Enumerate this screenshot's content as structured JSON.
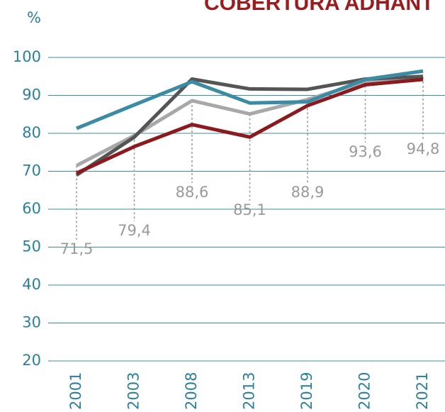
{
  "chart_data": {
    "type": "line",
    "title": "COBERTURA ADHANT",
    "y_label": "%",
    "categories": [
      "2001",
      "2003",
      "2008",
      "2013",
      "2019",
      "2020",
      "2021"
    ],
    "ylim": [
      20,
      100
    ],
    "yticks": [
      20,
      30,
      40,
      50,
      60,
      70,
      80,
      90,
      100
    ],
    "grid": true,
    "series": [
      {
        "color": "#3a8ba3",
        "values": [
          81.3,
          87.5,
          93.6,
          88,
          88.3,
          94.2,
          96.4
        ]
      },
      {
        "color": "#555555",
        "values": [
          69,
          79,
          94.3,
          91.7,
          91.6,
          94.3,
          95
        ]
      },
      {
        "color": "#a8a8a8",
        "values": [
          71.5,
          79.4,
          88.6,
          85.1,
          88.9,
          93.6,
          94.8
        ],
        "value_labels": [
          "71,5",
          "79,4",
          "88,6",
          "85,1",
          "88,9",
          "93,6",
          "94,8"
        ]
      },
      {
        "color": "#8b1a1f",
        "values": [
          69.5,
          76.5,
          82.3,
          79,
          87.3,
          92.8,
          94.2
        ]
      }
    ]
  }
}
